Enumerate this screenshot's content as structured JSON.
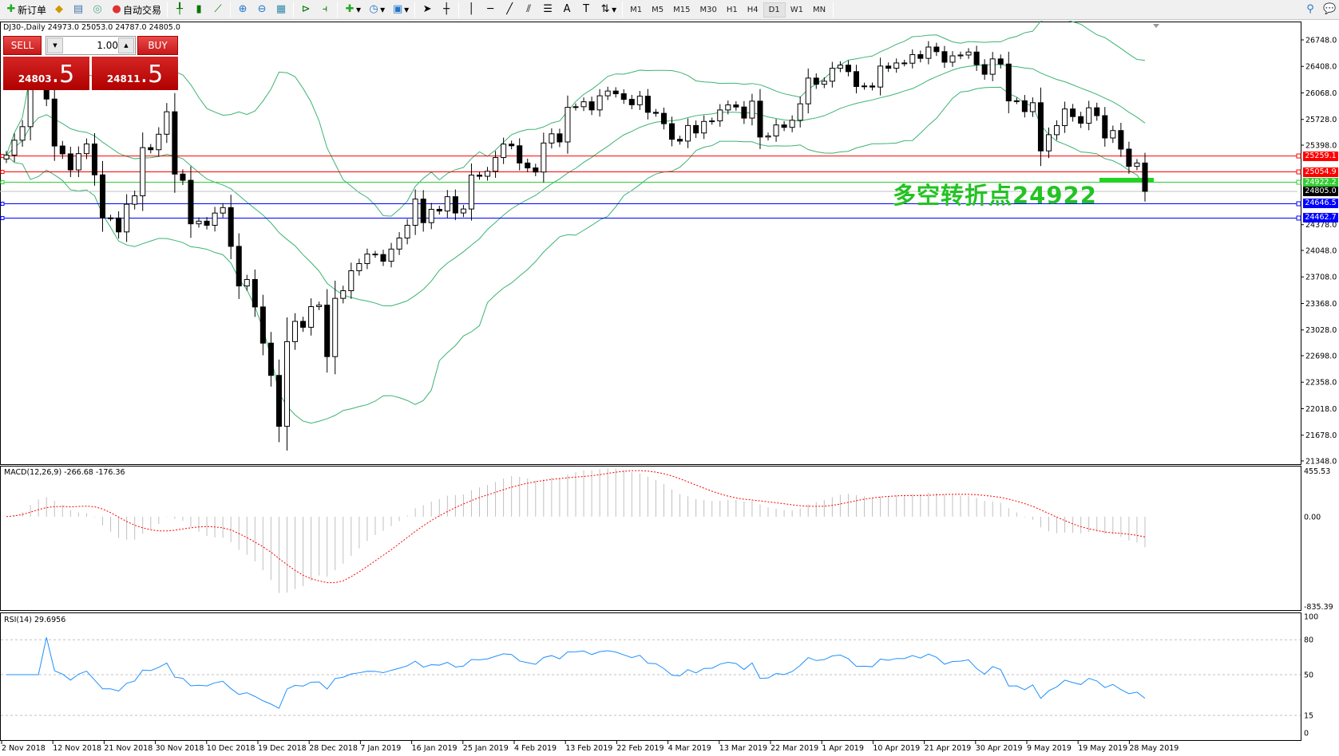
{
  "toolbar": {
    "new_order": "新订单",
    "auto_trading": "自动交易",
    "timeframes": [
      "M1",
      "M5",
      "M15",
      "M30",
      "H1",
      "H4",
      "D1",
      "W1",
      "MN"
    ],
    "active_timeframe": "D1",
    "icons": [
      "new-order-icon",
      "metaeditor-icon",
      "market-watch-icon",
      "signals-icon",
      "auto-trading-icon",
      "bar-chart-icon",
      "candlestick-icon",
      "line-chart-icon",
      "zoom-in-icon",
      "zoom-out-icon",
      "tile-windows-icon",
      "autoscroll-icon",
      "chart-shift-icon",
      "indicators-icon",
      "periods-icon",
      "templates-icon",
      "cursor-icon",
      "crosshair-icon",
      "vertical-line-icon",
      "horizontal-line-icon",
      "trendline-icon",
      "fibonacci-fan-icon",
      "fibonacci-icon",
      "text-icon",
      "text-label-icon",
      "arrows-icon",
      "search-icon",
      "chat-icon"
    ]
  },
  "chart": {
    "title": "DJ30-,Daily  24973.0 25053.0 24787.0 24805.0",
    "trade_panel": {
      "sell_label": "SELL",
      "buy_label": "BUY",
      "lot": "1.00",
      "sell_price_main": "24803",
      "sell_price_big": ".5",
      "buy_price_main": "24811",
      "buy_price_big": ".5"
    },
    "annotation": "多空转折点24922",
    "annotation_color": "#22c322"
  },
  "chart_data": {
    "type": "candlestick",
    "symbol": "DJ30-",
    "timeframe": "Daily",
    "ylim": [
      21348,
      26748
    ],
    "price_ticks": [
      "26748.0",
      "26408.0",
      "26068.0",
      "25728.0",
      "25398.0",
      "24378.0",
      "24048.0",
      "23708.0",
      "23368.0",
      "23028.0",
      "22698.0",
      "22358.0",
      "22018.0",
      "21678.0",
      "21348.0"
    ],
    "date_labels": [
      "2 Nov 2018",
      "12 Nov 2018",
      "21 Nov 2018",
      "30 Nov 2018",
      "10 Dec 2018",
      "19 Dec 2018",
      "28 Dec 2018",
      "7 Jan 2019",
      "16 Jan 2019",
      "25 Jan 2019",
      "4 Feb 2019",
      "13 Feb 2019",
      "22 Feb 2019",
      "4 Mar 2019",
      "13 Mar 2019",
      "22 Mar 2019",
      "1 Apr 2019",
      "10 Apr 2019",
      "21 Apr 2019",
      "30 Apr 2019",
      "9 May 2019",
      "19 May 2019",
      "28 May 2019"
    ],
    "closes": [
      25270,
      25461,
      25635,
      26180,
      26191,
      25989,
      25387,
      25286,
      25080,
      25289,
      25413,
      25017,
      24465,
      24464,
      24285,
      24640,
      24748,
      25366,
      25339,
      25538,
      25826,
      25027,
      24947,
      24389,
      24423,
      24370,
      24527,
      24597,
      24100,
      23592,
      23675,
      23323,
      22859,
      22445,
      21792,
      22878,
      23138,
      23062,
      23327,
      23346,
      22686,
      23433,
      23531,
      23787,
      23879,
      24001,
      23995,
      23909,
      24065,
      24207,
      24370,
      24706,
      24404,
      24575,
      24553,
      24737,
      24528,
      24579,
      25014,
      24999,
      25063,
      25239,
      25411,
      25390,
      25169,
      25106,
      25053,
      25425,
      25543,
      25439,
      25883,
      25891,
      25954,
      25850,
      26031,
      26092,
      26057,
      25985,
      25916,
      26026,
      25819,
      25806,
      25673,
      25473,
      25450,
      25650,
      25554,
      25702,
      25709,
      25849,
      25914,
      25887,
      25745,
      25962,
      25502,
      25516,
      25657,
      25626,
      25717,
      25928,
      26258,
      26179,
      26218,
      26384,
      26424,
      26341,
      26150,
      26157,
      26143,
      26412,
      26384,
      26452,
      26449,
      26559,
      26511,
      26656,
      26597,
      26462,
      26543,
      26554,
      26592,
      26430,
      26307,
      26504,
      26438,
      25965,
      25967,
      25828,
      25942,
      25324,
      25532,
      25648,
      25862,
      25764,
      25679,
      25877,
      25776,
      25490,
      25585,
      25347,
      25126,
      25169,
      24805
    ],
    "bollinger": {
      "period": 20,
      "deviation": 2,
      "color": "#3cb371"
    },
    "levels": [
      {
        "price": "25259.1",
        "color": "#ff0000"
      },
      {
        "price": "25054.9",
        "color": "#ff0000"
      },
      {
        "price": "24922.2",
        "color": "#32cd32"
      },
      {
        "price": "24805.0",
        "color": "#000000",
        "line": "#c0c0c0"
      },
      {
        "price": "24646.5",
        "color": "#0000ff"
      },
      {
        "price": "24462.7",
        "color": "#0000ff"
      }
    ],
    "candle_up": "#ffffff",
    "candle_down": "#000000"
  },
  "macd": {
    "label": "MACD(12,26,9) -266.68 -176.36",
    "ticks": [
      "455.53",
      "0.00",
      "-835.39"
    ],
    "range": [
      -835.39,
      455.53
    ],
    "histogram_color": "#c0c0c0",
    "signal_color": "#ff0000"
  },
  "rsi": {
    "label": "RSI(14) 29.6956",
    "ticks": [
      "100",
      "80",
      "50",
      "15",
      "0"
    ],
    "levels": [
      80,
      50,
      15
    ],
    "color": "#1e90ff"
  }
}
